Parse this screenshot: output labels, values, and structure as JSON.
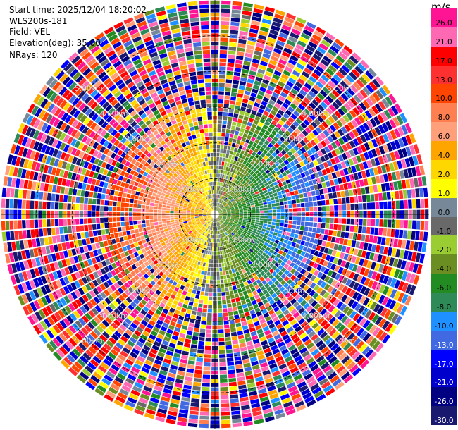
{
  "header": {
    "start_time": "Start time: 2025/12/04 18:20:02",
    "instrument": "WLS200s-181",
    "field": "Field: VEL",
    "elevation": "Elevation(deg): 35.00",
    "nrays": "NRays: 120"
  },
  "colorbar": {
    "unit": "m/s",
    "ticks": [
      "26.0",
      "21.0",
      "17.0",
      "13.0",
      "10.0",
      "8.0",
      "6.0",
      "4.0",
      "2.0",
      "1.0",
      "0.0",
      "-1.0",
      "-2.0",
      "-4.0",
      "-6.0",
      "-8.0",
      "-10.0",
      "-13.0",
      "-17.0",
      "-21.0",
      "-26.0",
      "-30.0"
    ],
    "colors": [
      "#ff1493",
      "#ff69b4",
      "#ff0000",
      "#ff3030",
      "#ff4500",
      "#ff7f50",
      "#ffa07a",
      "#ffa500",
      "#ffd700",
      "#ffff00",
      "#778899",
      "#696969",
      "#9acd32",
      "#6b8e23",
      "#228b22",
      "#2e8b57",
      "#1e90ff",
      "#4169e1",
      "#0000ff",
      "#0000cd",
      "#000080",
      "#191970"
    ]
  },
  "chart_data": {
    "type": "polar_ppi",
    "title": "",
    "field": "VEL",
    "units": "m/s",
    "nrays": 120,
    "elevation_deg": 35.0,
    "range_max_km": 6.0,
    "range_rings_km": [
      1.0,
      2.0,
      3.0,
      4.0,
      5.0
    ],
    "ring_labels": [
      "1.00km",
      "2.00km",
      "3.00km",
      "4.00km",
      "5.00km"
    ],
    "clim": [
      -30.0,
      30.0
    ],
    "grid": true
  }
}
